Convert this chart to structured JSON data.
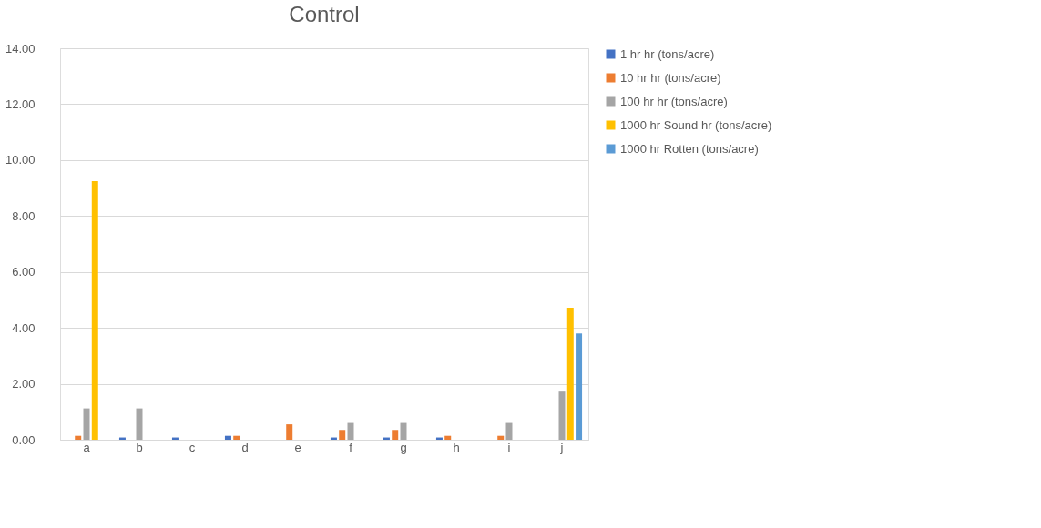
{
  "chart_data": {
    "type": "bar",
    "title": "Control",
    "categories": [
      "a",
      "b",
      "c",
      "d",
      "e",
      "f",
      "g",
      "h",
      "i",
      "j"
    ],
    "series": [
      {
        "name": "1 hr hr (tons/acre)",
        "color": "#4472c4",
        "values": [
          null,
          0.08,
          0.08,
          0.14,
          null,
          0.08,
          0.08,
          0.08,
          null,
          null
        ]
      },
      {
        "name": "10 hr hr (tons/acre)",
        "color": "#ed7d31",
        "values": [
          0.14,
          null,
          null,
          0.14,
          0.55,
          0.35,
          0.35,
          0.14,
          0.14,
          null
        ]
      },
      {
        "name": "100 hr hr (tons/acre)",
        "color": "#a5a5a5",
        "values": [
          1.12,
          1.12,
          null,
          null,
          null,
          0.6,
          0.6,
          null,
          0.6,
          1.72
        ]
      },
      {
        "name": "1000 hr Sound hr (tons/acre)",
        "color": "#ffc000",
        "values": [
          9.25,
          null,
          null,
          null,
          null,
          null,
          null,
          null,
          null,
          4.72
        ]
      },
      {
        "name": "1000 hr Rotten (tons/acre)",
        "color": "#5b9bd5",
        "values": [
          null,
          null,
          null,
          null,
          null,
          null,
          null,
          null,
          null,
          3.8
        ]
      }
    ],
    "ylim": [
      0,
      14
    ],
    "yticks": [
      {
        "value": 0,
        "label": "0.00"
      },
      {
        "value": 2,
        "label": "2.00"
      },
      {
        "value": 4,
        "label": "4.00"
      },
      {
        "value": 6,
        "label": "6.00"
      },
      {
        "value": 8,
        "label": "8.00"
      },
      {
        "value": 10,
        "label": "10.00"
      },
      {
        "value": 12,
        "label": "12.00"
      },
      {
        "value": 14,
        "label": "14.00"
      }
    ],
    "grid": "y",
    "legend": "right"
  }
}
